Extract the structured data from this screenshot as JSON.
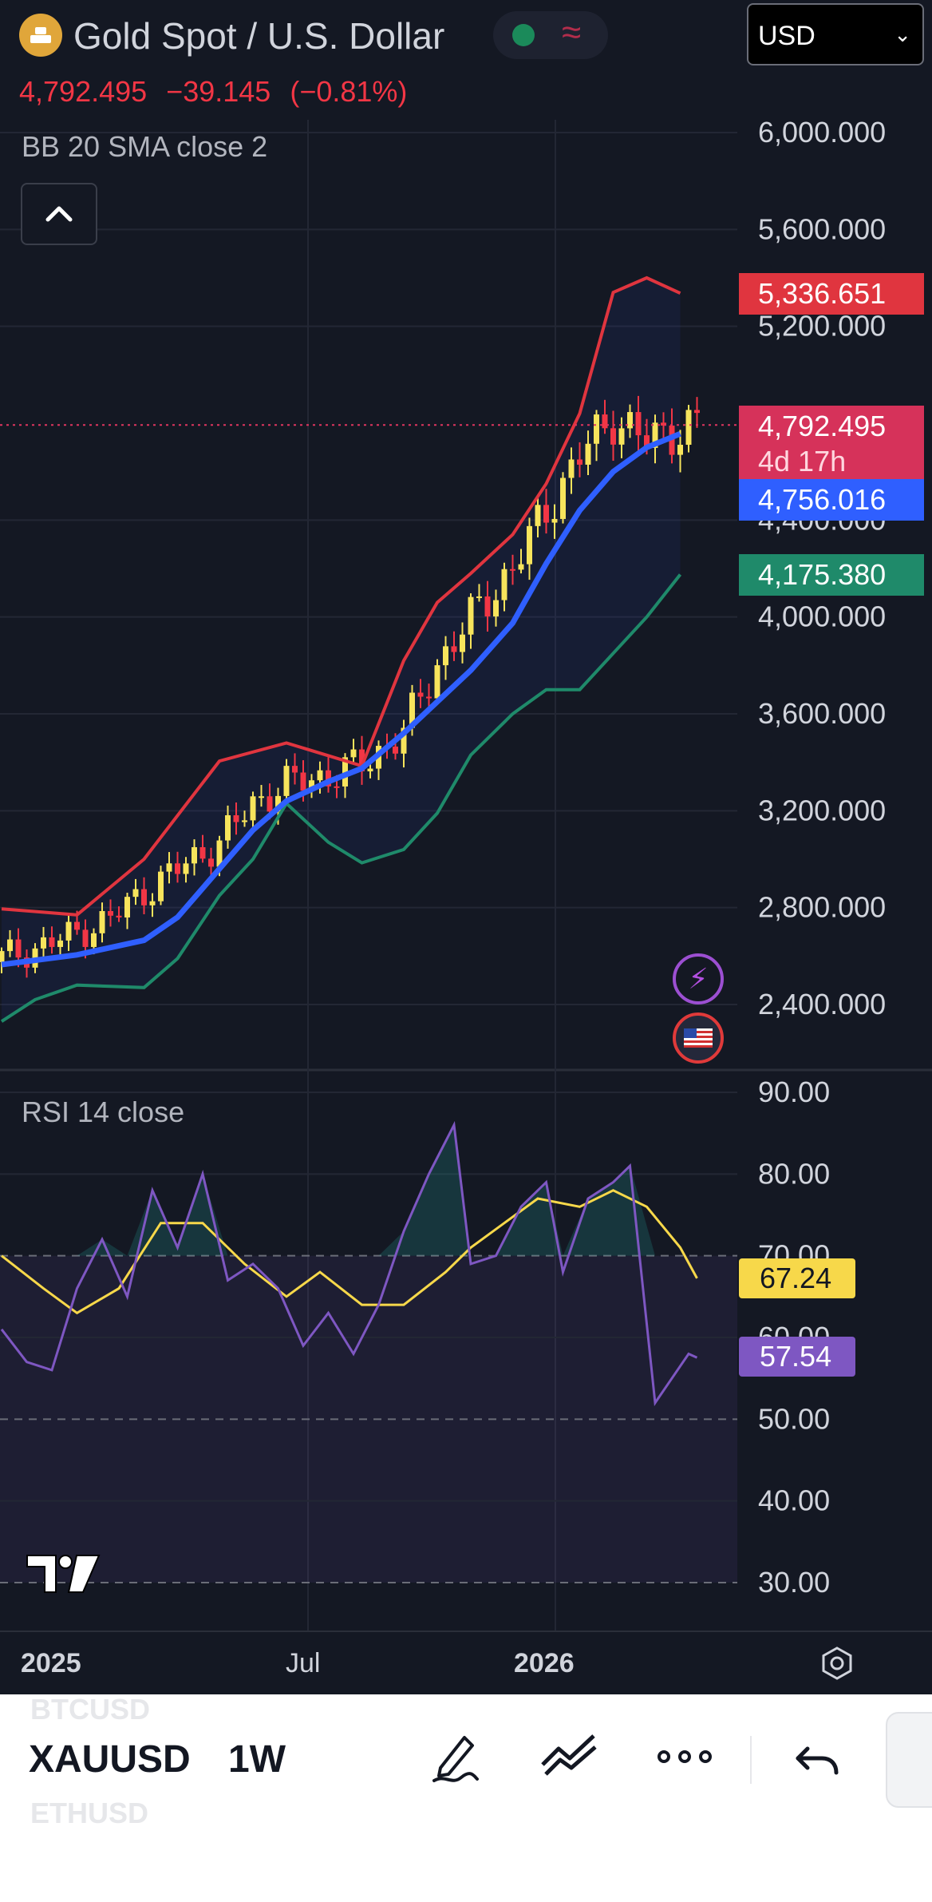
{
  "header": {
    "symbol_title": "Gold Spot / U.S. Dollar",
    "last_price": "4,792.495",
    "change": "−39.145",
    "change_pct": "(−0.81%)",
    "indicator_label": "BB 20 SMA close 2",
    "rsi_label": "RSI 14 close",
    "currency": "USD",
    "status_wave": "≈"
  },
  "colors": {
    "background": "#141823",
    "candle_up": "#f7e45c",
    "candle_down": "#f23645",
    "bb_upper": "#e0353f",
    "bb_basis": "#2f5fff",
    "bb_lower": "#1f8a6a",
    "rsi_line": "#7e57c2",
    "rsi_ma": "#f7d84a"
  },
  "price_tags": {
    "bb_upper": "5,336.651",
    "last": "4,792.495",
    "countdown": "4d 17h",
    "bb_basis": "4,756.016",
    "bb_lower": "4,175.380"
  },
  "rsi_tags": {
    "rsi_ma": "67.24",
    "rsi": "57.54"
  },
  "price_axis": [
    "6,000.000",
    "5,600.000",
    "5,200.000",
    "4,400.000",
    "4,000.000",
    "3,600.000",
    "3,200.000",
    "2,800.000",
    "2,400.000"
  ],
  "rsi_axis": [
    "90.00",
    "80.00",
    "70.00",
    "60.00",
    "50.00",
    "40.00",
    "30.00"
  ],
  "time_axis": [
    {
      "label": "2025",
      "bold": true
    },
    {
      "label": "Jul",
      "bold": false
    },
    {
      "label": "2026",
      "bold": true
    }
  ],
  "toolbar": {
    "symbol_prev": "BTCUSD",
    "symbol": "XAUUSD",
    "symbol_next": "ETHUSD",
    "interval": "1W"
  },
  "chart_data": {
    "type": "line",
    "title": "Gold Spot / U.S. Dollar",
    "timeframe": "1W",
    "xlabel": "",
    "ylabel": "",
    "ylim": [
      2200,
      6100
    ],
    "rsi_ylim": [
      27,
      93
    ],
    "x_ticks": [
      "2025",
      "Jul",
      "2026"
    ],
    "series": [
      {
        "name": "",
        "points": [
          [
            0,
            2595
          ],
          [
            4,
            2630
          ],
          [
            9,
            2695
          ],
          [
            13,
            2755
          ],
          [
            17,
            2865
          ],
          [
            21,
            2960
          ],
          [
            26,
            3070
          ],
          [
            30,
            3230
          ],
          [
            34,
            3310
          ],
          [
            39,
            3345
          ],
          [
            43,
            3390
          ],
          [
            48,
            3525
          ],
          [
            52,
            3805
          ],
          [
            56,
            3995
          ],
          [
            61,
            4200
          ],
          [
            65,
            4440
          ],
          [
            69,
            4665
          ],
          [
            73,
            4825
          ],
          [
            77,
            4725
          ],
          [
            81,
            4780
          ],
          [
            83,
            4792.495
          ]
        ]
      },
      {
        "name": "BB 20 SMA close 2 upper",
        "points": [
          [
            0,
            2795
          ],
          [
            9,
            2770
          ],
          [
            17,
            3000
          ],
          [
            26,
            3405
          ],
          [
            34,
            3480
          ],
          [
            43,
            3385
          ],
          [
            48,
            3820
          ],
          [
            52,
            4060
          ],
          [
            56,
            4180
          ],
          [
            61,
            4340
          ],
          [
            65,
            4550
          ],
          [
            69,
            4840
          ],
          [
            73,
            5340
          ],
          [
            77,
            5400
          ],
          [
            81,
            5336.651
          ]
        ]
      },
      {
        "name": "BB 20 SMA close 2 basis",
        "points": [
          [
            0,
            2565
          ],
          [
            9,
            2605
          ],
          [
            17,
            2665
          ],
          [
            21,
            2760
          ],
          [
            26,
            2960
          ],
          [
            30,
            3120
          ],
          [
            34,
            3240
          ],
          [
            39,
            3320
          ],
          [
            43,
            3375
          ],
          [
            48,
            3520
          ],
          [
            52,
            3650
          ],
          [
            56,
            3780
          ],
          [
            61,
            3975
          ],
          [
            65,
            4220
          ],
          [
            69,
            4440
          ],
          [
            73,
            4600
          ],
          [
            77,
            4700
          ],
          [
            81,
            4756.016
          ]
        ]
      },
      {
        "name": "BB 20 SMA close 2 lower",
        "points": [
          [
            0,
            2330
          ],
          [
            4,
            2420
          ],
          [
            9,
            2480
          ],
          [
            13,
            2475
          ],
          [
            17,
            2470
          ],
          [
            21,
            2590
          ],
          [
            26,
            2850
          ],
          [
            30,
            3000
          ],
          [
            34,
            3230
          ],
          [
            39,
            3070
          ],
          [
            43,
            2985
          ],
          [
            48,
            3040
          ],
          [
            52,
            3190
          ],
          [
            56,
            3430
          ],
          [
            61,
            3600
          ],
          [
            65,
            3700
          ],
          [
            69,
            3700
          ],
          [
            73,
            3850
          ],
          [
            77,
            4000
          ],
          [
            81,
            4175.38
          ]
        ]
      },
      {
        "name": "RSI 14 close",
        "points": [
          [
            0,
            61
          ],
          [
            3,
            57
          ],
          [
            6,
            56
          ],
          [
            9,
            66
          ],
          [
            12,
            72
          ],
          [
            15,
            65
          ],
          [
            18,
            78
          ],
          [
            21,
            71
          ],
          [
            24,
            80
          ],
          [
            27,
            67
          ],
          [
            30,
            69
          ],
          [
            33,
            66
          ],
          [
            36,
            59
          ],
          [
            39,
            63
          ],
          [
            42,
            58
          ],
          [
            45,
            64
          ],
          [
            48,
            73
          ],
          [
            51,
            80
          ],
          [
            54,
            86
          ],
          [
            56,
            69
          ],
          [
            59,
            70
          ],
          [
            62,
            76
          ],
          [
            65,
            79
          ],
          [
            67,
            68
          ],
          [
            70,
            77
          ],
          [
            73,
            79
          ],
          [
            75,
            81
          ],
          [
            78,
            52
          ],
          [
            80,
            55
          ],
          [
            82,
            58
          ],
          [
            83,
            57.54
          ]
        ]
      },
      {
        "name": "RSI MA",
        "points": [
          [
            0,
            70
          ],
          [
            5,
            66
          ],
          [
            9,
            63
          ],
          [
            14,
            66
          ],
          [
            19,
            74
          ],
          [
            24,
            74
          ],
          [
            29,
            69
          ],
          [
            34,
            65
          ],
          [
            38,
            68
          ],
          [
            43,
            64
          ],
          [
            48,
            64
          ],
          [
            53,
            68
          ],
          [
            56,
            71
          ],
          [
            60,
            74
          ],
          [
            64,
            77
          ],
          [
            69,
            76
          ],
          [
            73,
            78
          ],
          [
            77,
            76
          ],
          [
            81,
            71
          ],
          [
            83,
            67.24
          ]
        ]
      }
    ]
  }
}
